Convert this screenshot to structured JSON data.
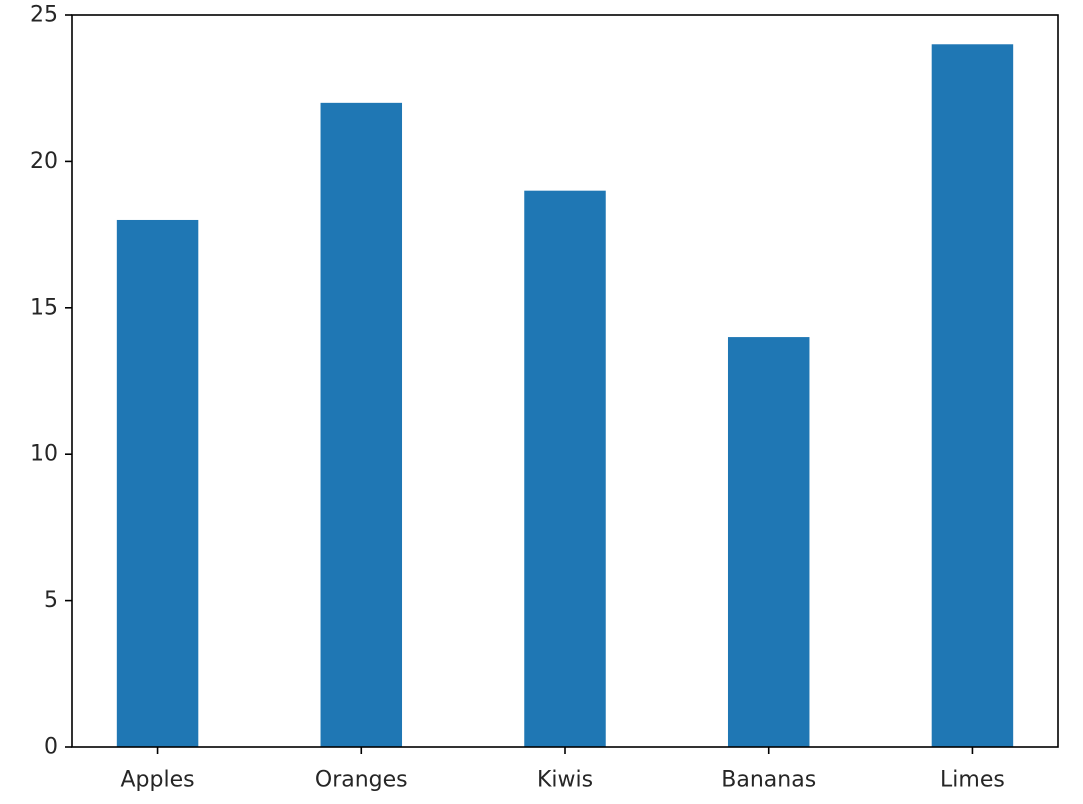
{
  "chart_data": {
    "type": "bar",
    "title": "",
    "xlabel": "",
    "ylabel": "",
    "categories": [
      "Apples",
      "Oranges",
      "Kiwis",
      "Bananas",
      "Limes"
    ],
    "values": [
      18,
      22,
      19,
      14,
      24
    ],
    "ylim": [
      0,
      25
    ],
    "yticks": [
      0,
      5,
      10,
      15,
      20,
      25
    ],
    "grid": false,
    "legend": "none",
    "bar_color": "#1f77b4"
  }
}
